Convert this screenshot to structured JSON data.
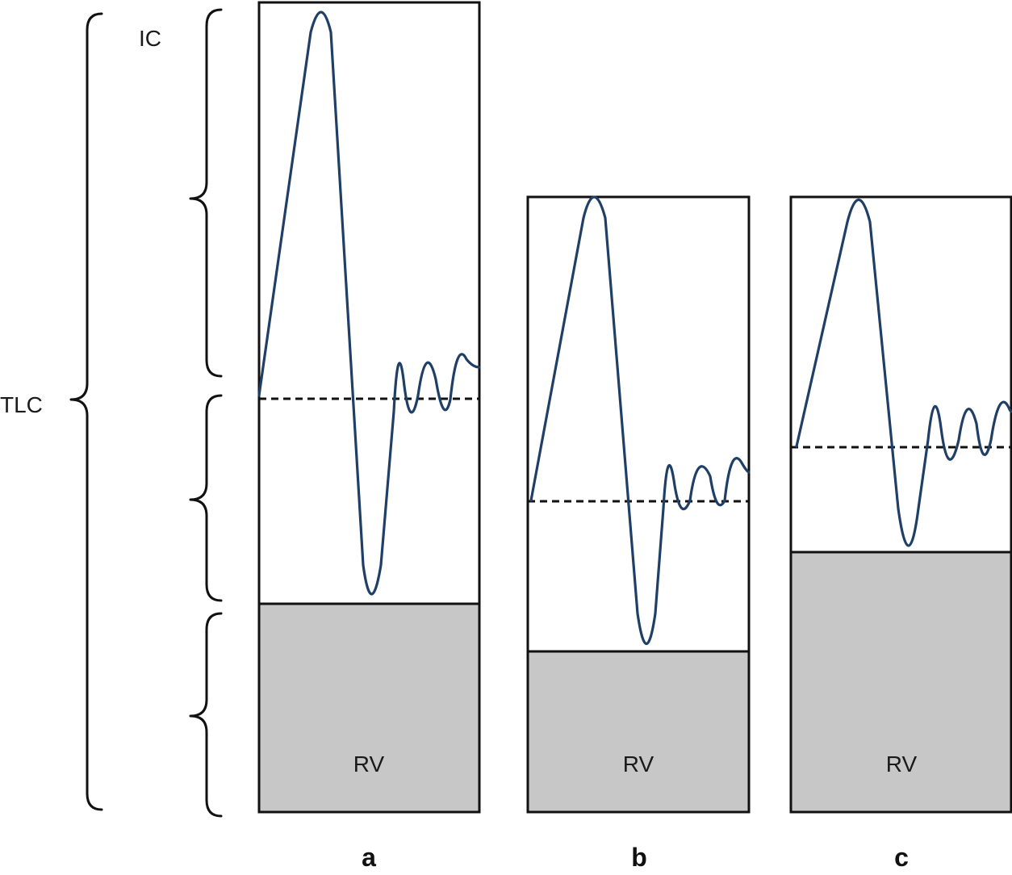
{
  "labels": {
    "tlc": "TLC",
    "ic": "IC",
    "rv": "RV"
  },
  "panels": [
    {
      "id": "a",
      "label": "a"
    },
    {
      "id": "b",
      "label": "b"
    },
    {
      "id": "c",
      "label": "c"
    }
  ],
  "colors": {
    "trace": "#1f3f66",
    "rv_fill": "#c6c7c6",
    "outline": "#111111"
  }
}
